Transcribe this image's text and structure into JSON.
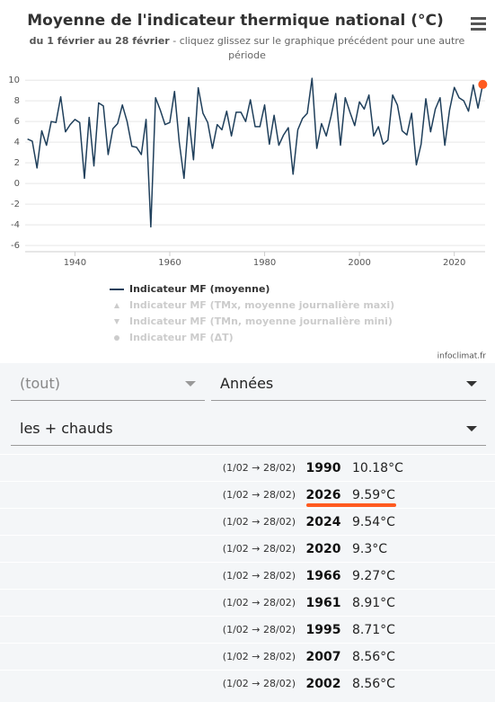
{
  "chart_data": {
    "type": "line",
    "title": "Moyenne de l'indicateur thermique national (°C)",
    "subtitle_period": "du 1 février au 28 février",
    "subtitle_line1": " - cliquez glissez sur le graphique précédent pour une autre",
    "subtitle_line2": "période",
    "credit": "infoclimat.fr",
    "x": [
      1930,
      1931,
      1932,
      1933,
      1934,
      1935,
      1936,
      1937,
      1938,
      1939,
      1940,
      1941,
      1942,
      1943,
      1944,
      1945,
      1946,
      1947,
      1948,
      1949,
      1950,
      1951,
      1952,
      1953,
      1954,
      1955,
      1956,
      1957,
      1958,
      1959,
      1960,
      1961,
      1962,
      1963,
      1964,
      1965,
      1966,
      1967,
      1968,
      1969,
      1970,
      1971,
      1972,
      1973,
      1974,
      1975,
      1976,
      1977,
      1978,
      1979,
      1980,
      1981,
      1982,
      1983,
      1984,
      1985,
      1986,
      1987,
      1988,
      1989,
      1990,
      1991,
      1992,
      1993,
      1994,
      1995,
      1996,
      1997,
      1998,
      1999,
      2000,
      2001,
      2002,
      2003,
      2004,
      2005,
      2006,
      2007,
      2008,
      2009,
      2010,
      2011,
      2012,
      2013,
      2014,
      2015,
      2016,
      2017,
      2018,
      2019,
      2020,
      2021,
      2022,
      2023,
      2024,
      2025,
      2026
    ],
    "series": [
      {
        "name": "Indicateur MF (moyenne)",
        "color": "#1f3f5b",
        "values": [
          4.3,
          4.1,
          1.5,
          5.1,
          3.7,
          6.0,
          5.9,
          8.4,
          5.0,
          5.7,
          6.2,
          5.9,
          0.5,
          6.4,
          1.7,
          7.8,
          7.5,
          2.8,
          5.3,
          5.8,
          7.6,
          6.0,
          3.6,
          3.5,
          2.8,
          6.2,
          -4.2,
          8.3,
          7.1,
          5.7,
          5.9,
          8.91,
          4.0,
          0.5,
          6.4,
          2.3,
          9.27,
          6.8,
          5.9,
          3.4,
          5.7,
          5.2,
          7.0,
          4.6,
          6.9,
          6.9,
          6.0,
          8.1,
          5.5,
          5.5,
          7.6,
          3.8,
          6.6,
          3.7,
          4.7,
          5.4,
          0.9,
          5.2,
          6.3,
          6.8,
          10.18,
          3.4,
          5.8,
          4.6,
          6.5,
          8.71,
          3.7,
          8.3,
          6.9,
          5.6,
          7.9,
          7.2,
          8.56,
          4.6,
          5.5,
          3.8,
          4.2,
          8.56,
          7.6,
          5.1,
          4.7,
          6.8,
          1.8,
          3.8,
          8.2,
          5.0,
          7.2,
          8.3,
          3.7,
          7.1,
          9.3,
          8.3,
          8.0,
          7.0,
          9.54,
          7.3,
          9.59
        ]
      }
    ],
    "hidden_series": [
      {
        "name": "Indicateur MF (TMx, moyenne journalière maxi)",
        "symbol": "triangle"
      },
      {
        "name": "Indicateur MF (TMn, moyenne journalière mini)",
        "symbol": "triangle-down"
      },
      {
        "name": "Indicateur MF (ΔT)",
        "symbol": "circle"
      }
    ],
    "hidden_color": "#cccccc",
    "highlight": {
      "x": 2026,
      "color": "#ff5a1f"
    },
    "xlim": [
      1929.5,
      2026.5
    ],
    "xticks": [
      1940,
      1960,
      1980,
      2000,
      2020
    ],
    "ylim": [
      -6.6,
      10.8
    ],
    "yticks": [
      -6,
      -4,
      -2,
      0,
      2,
      4,
      6,
      8,
      10
    ],
    "grid": true
  },
  "controls": [
    "(tout)",
    "Années",
    "les + chauds"
  ],
  "table": {
    "highlight_color": "#ff5a1f",
    "rows": [
      {
        "period": "(1/02 → 28/02)",
        "year": "1990",
        "value": "10.18°C"
      },
      {
        "period": "(1/02 → 28/02)",
        "year": "2026",
        "value": "9.59°C",
        "highlight": true
      },
      {
        "period": "(1/02 → 28/02)",
        "year": "2024",
        "value": "9.54°C"
      },
      {
        "period": "(1/02 → 28/02)",
        "year": "2020",
        "value": "9.3°C"
      },
      {
        "period": "(1/02 → 28/02)",
        "year": "1966",
        "value": "9.27°C"
      },
      {
        "period": "(1/02 → 28/02)",
        "year": "1961",
        "value": "8.91°C"
      },
      {
        "period": "(1/02 → 28/02)",
        "year": "1995",
        "value": "8.71°C"
      },
      {
        "period": "(1/02 → 28/02)",
        "year": "2007",
        "value": "8.56°C"
      },
      {
        "period": "(1/02 → 28/02)",
        "year": "2002",
        "value": "8.56°C"
      }
    ]
  }
}
